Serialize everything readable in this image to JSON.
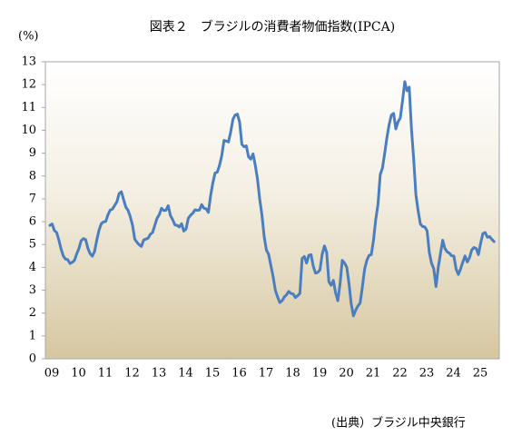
{
  "chart_data": {
    "type": "line",
    "title": "図表２　ブラジルの消費者物価指数(IPCA)",
    "y_label": "(%)",
    "source": "(出典）ブラジル中央銀行",
    "color": "#4a7ebf",
    "ylim": [
      0,
      13
    ],
    "yticks": [
      0,
      1,
      2,
      3,
      4,
      5,
      6,
      7,
      8,
      9,
      10,
      11,
      12,
      13
    ],
    "categories": [
      "09",
      null,
      null,
      null,
      null,
      null,
      null,
      null,
      null,
      null,
      null,
      null,
      "10",
      null,
      null,
      null,
      null,
      null,
      null,
      null,
      null,
      null,
      null,
      null,
      "11",
      null,
      null,
      null,
      null,
      null,
      null,
      null,
      null,
      null,
      null,
      null,
      "12",
      null,
      null,
      null,
      null,
      null,
      null,
      null,
      null,
      null,
      null,
      null,
      "13",
      null,
      null,
      null,
      null,
      null,
      null,
      null,
      null,
      null,
      null,
      null,
      "14",
      null,
      null,
      null,
      null,
      null,
      null,
      null,
      null,
      null,
      null,
      null,
      "15",
      null,
      null,
      null,
      null,
      null,
      null,
      null,
      null,
      null,
      null,
      null,
      "16",
      null,
      null,
      null,
      null,
      null,
      null,
      null,
      null,
      null,
      null,
      null,
      "17",
      null,
      null,
      null,
      null,
      null,
      null,
      null,
      null,
      null,
      null,
      null,
      "18",
      null,
      null,
      null,
      null,
      null,
      null,
      null,
      null,
      null,
      null,
      null,
      "19",
      null,
      null,
      null,
      null,
      null,
      null,
      null,
      null,
      null,
      null,
      null,
      "20",
      null,
      null,
      null,
      null,
      null,
      null,
      null,
      null,
      null,
      null,
      null,
      "21",
      null,
      null,
      null,
      null,
      null,
      null,
      null,
      null,
      null,
      null,
      null,
      "22",
      null,
      null,
      null,
      null,
      null,
      null,
      null,
      null,
      null,
      null,
      null,
      "23",
      null,
      null,
      null,
      null,
      null,
      null,
      null,
      null,
      null,
      null,
      null,
      "24",
      null,
      null,
      null,
      null,
      null,
      null,
      null,
      null,
      null,
      null,
      null,
      "25",
      null,
      null,
      null,
      null,
      null,
      null,
      null
    ],
    "values": [
      5.84,
      5.9,
      5.61,
      5.53,
      5.2,
      4.8,
      4.5,
      4.36,
      4.34,
      4.17,
      4.22,
      4.31,
      4.59,
      4.83,
      5.17,
      5.26,
      5.22,
      4.84,
      4.6,
      4.49,
      4.7,
      5.2,
      5.63,
      5.91,
      5.99,
      6.01,
      6.3,
      6.51,
      6.55,
      6.71,
      6.87,
      7.23,
      7.31,
      6.97,
      6.64,
      6.5,
      6.22,
      5.85,
      5.24,
      5.1,
      4.99,
      4.92,
      5.2,
      5.24,
      5.28,
      5.45,
      5.53,
      5.84,
      6.15,
      6.31,
      6.59,
      6.49,
      6.5,
      6.7,
      6.27,
      6.09,
      5.86,
      5.84,
      5.77,
      5.91,
      5.59,
      5.68,
      6.15,
      6.28,
      6.37,
      6.52,
      6.5,
      6.51,
      6.75,
      6.59,
      6.56,
      6.41,
      7.14,
      7.7,
      8.13,
      8.17,
      8.47,
      8.89,
      9.56,
      9.53,
      9.49,
      9.93,
      10.48,
      10.67,
      10.71,
      10.36,
      9.39,
      9.28,
      9.32,
      8.84,
      8.74,
      8.97,
      8.48,
      7.87,
      6.99,
      6.29,
      5.35,
      4.76,
      4.57,
      4.08,
      3.6,
      3.0,
      2.71,
      2.46,
      2.54,
      2.7,
      2.8,
      2.95,
      2.86,
      2.84,
      2.68,
      2.76,
      2.86,
      4.39,
      4.48,
      4.19,
      4.53,
      4.56,
      4.05,
      3.75,
      3.78,
      3.89,
      4.58,
      4.94,
      4.66,
      3.37,
      3.22,
      3.43,
      2.89,
      2.54,
      3.27,
      4.31,
      4.19,
      4.01,
      3.3,
      2.4,
      1.88,
      2.13,
      2.31,
      2.44,
      3.14,
      3.92,
      4.31,
      4.52,
      4.56,
      5.2,
      6.1,
      6.76,
      8.06,
      8.35,
      8.99,
      9.68,
      10.25,
      10.67,
      10.74,
      10.06,
      10.38,
      10.54,
      11.3,
      12.13,
      11.73,
      11.89,
      10.07,
      8.73,
      7.17,
      6.47,
      5.9,
      5.79,
      5.77,
      5.6,
      4.65,
      4.18,
      3.94,
      3.16,
      3.99,
      4.61,
      5.19,
      4.82,
      4.68,
      4.62,
      4.51,
      4.5,
      3.93,
      3.69,
      3.93,
      4.23,
      4.5,
      4.24,
      4.42,
      4.76,
      4.87,
      4.83,
      4.56,
      5.06,
      5.48,
      5.53,
      5.32,
      5.35,
      5.23,
      5.13
    ]
  }
}
